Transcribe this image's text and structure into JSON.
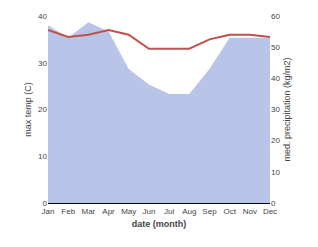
{
  "chart_data": {
    "type": "line",
    "xlabel": "date (month)",
    "ylabel": "max temp (C)",
    "y2label": "med. precipitation (kg/m2)",
    "categories": [
      "Jan",
      "Feb",
      "Mar",
      "Apr",
      "May",
      "Jun",
      "Jul",
      "Aug",
      "Sep",
      "Oct",
      "Nov",
      "Dec"
    ],
    "series": [
      {
        "type": "area",
        "axis": "y2",
        "color": "#b8c4e8",
        "values": [
          57.0,
          53.0,
          58.0,
          55.0,
          43.0,
          38.0,
          35.0,
          35.0,
          43.0,
          53.0,
          53.0,
          53.0
        ]
      },
      {
        "type": "line",
        "color": "#c0504d",
        "values": [
          37.0,
          35.5,
          36.0,
          37.0,
          36.0,
          33.0,
          33.0,
          33.0,
          35.0,
          36.0,
          36.0,
          35.5
        ]
      }
    ],
    "ylim": [
      0,
      40
    ],
    "yticks": [
      0,
      10,
      20,
      30,
      40
    ],
    "y2lim": [
      0,
      60
    ],
    "y2ticks": [
      0,
      10,
      20,
      30,
      40,
      50,
      60
    ],
    "grid": false
  }
}
